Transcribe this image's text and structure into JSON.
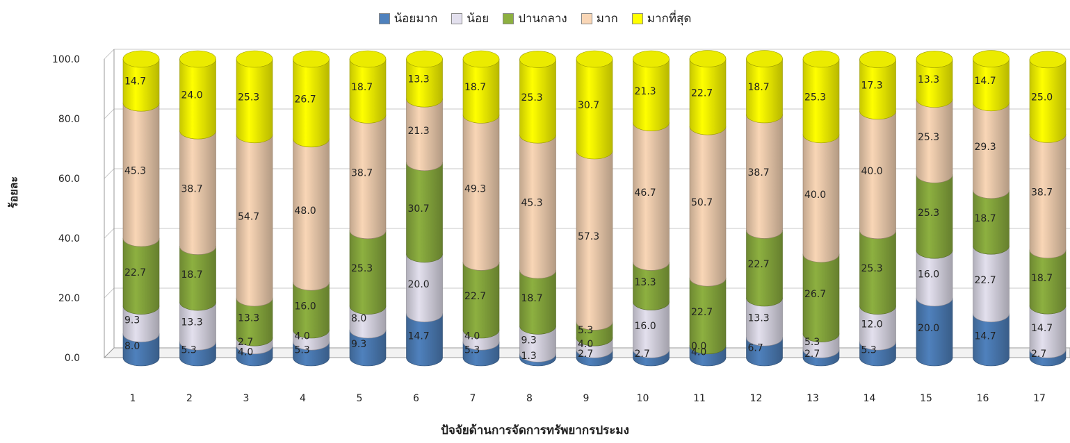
{
  "chart_data": {
    "type": "bar",
    "stacked": true,
    "percent": true,
    "style": "3d-cylinder",
    "categories": [
      "1",
      "2",
      "3",
      "4",
      "5",
      "6",
      "7",
      "8",
      "9",
      "10",
      "11",
      "12",
      "13",
      "14",
      "15",
      "16",
      "17"
    ],
    "series": [
      {
        "name": "น้อยมาก",
        "color": "#4f81bd",
        "values": [
          8.0,
          5.3,
          4.0,
          5.3,
          9.3,
          14.7,
          5.3,
          1.3,
          2.7,
          2.7,
          4.0,
          6.7,
          2.7,
          5.3,
          20.0,
          14.7,
          2.7
        ]
      },
      {
        "name": "น้อย",
        "color": "#e3e0ee",
        "values": [
          9.3,
          13.3,
          2.7,
          4.0,
          8.0,
          20.0,
          4.0,
          9.3,
          4.0,
          16.0,
          0.0,
          13.3,
          5.3,
          12.0,
          16.0,
          22.7,
          14.7
        ]
      },
      {
        "name": "ปานกลาง",
        "color": "#8db040",
        "values": [
          22.7,
          18.7,
          13.3,
          16.0,
          25.3,
          30.7,
          22.7,
          18.7,
          5.3,
          13.3,
          22.7,
          22.7,
          26.7,
          25.3,
          25.3,
          18.7,
          18.7
        ]
      },
      {
        "name": "มาก",
        "color": "#f9d6b6",
        "values": [
          45.3,
          38.7,
          54.7,
          48.0,
          38.7,
          21.3,
          49.3,
          45.3,
          57.3,
          46.7,
          50.7,
          38.7,
          40.0,
          40.0,
          25.3,
          29.3,
          38.7
        ]
      },
      {
        "name": "มากที่สุด",
        "color": "#ffff00",
        "values": [
          14.7,
          24.0,
          25.3,
          26.7,
          18.7,
          13.3,
          18.7,
          25.3,
          30.7,
          21.3,
          22.7,
          18.7,
          25.3,
          17.3,
          13.3,
          14.7,
          25.0
        ]
      }
    ],
    "xlabel": "ปัจจัยด้านการจัดการทรัพยากรประมง",
    "ylabel": "ร้อยละ",
    "ylim": [
      0,
      100
    ],
    "yticks": [
      "0.0",
      "20.0",
      "40.0",
      "60.0",
      "80.0",
      "100.0"
    ],
    "grid": true,
    "legend": "top"
  }
}
